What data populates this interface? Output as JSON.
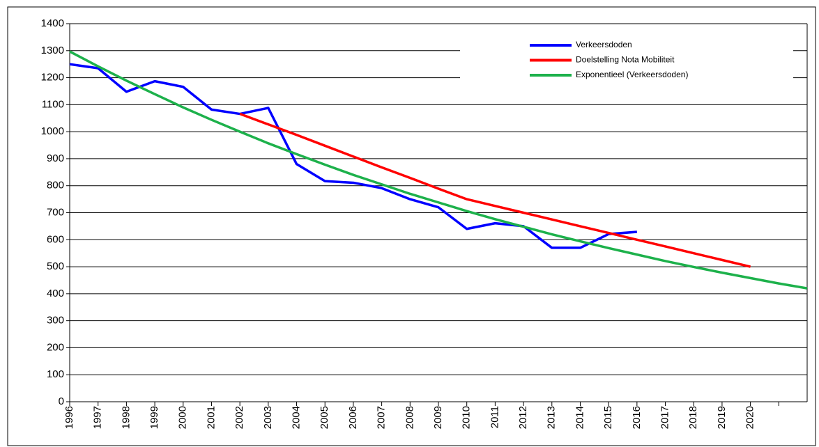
{
  "chart_data": {
    "type": "line",
    "categories": [
      "1996",
      "1997",
      "1998",
      "1999",
      "2000",
      "2001",
      "2002",
      "2003",
      "2004",
      "2005",
      "2006",
      "2007",
      "2008",
      "2009",
      "2010",
      "2011",
      "2012",
      "2013",
      "2014",
      "2015",
      "2016",
      "2017",
      "2018",
      "2019",
      "2020",
      null,
      null
    ],
    "series": [
      {
        "name": "Verkeersdoden",
        "color": "#0000ff",
        "values": [
          1250,
          1235,
          1148,
          1187,
          1166,
          1082,
          1066,
          1088,
          880,
          817,
          811,
          791,
          750,
          720,
          640,
          661,
          650,
          570,
          570,
          621,
          629,
          null,
          null,
          null,
          null,
          null,
          null
        ]
      },
      {
        "name": "Doelstelling Nota Mobiliteit",
        "color": "#ff0000",
        "values": [
          null,
          null,
          null,
          null,
          null,
          null,
          1066,
          1027,
          988,
          948,
          908,
          868,
          829,
          789,
          750,
          725,
          700,
          675,
          650,
          625,
          600,
          575,
          550,
          525,
          500,
          null,
          null
        ]
      },
      {
        "name": "Exponentieel (Verkeersdoden)",
        "color": "#1db14b",
        "values": [
          1297,
          1242,
          1189,
          1139,
          1090,
          1044,
          1000,
          957,
          917,
          878,
          840,
          805,
          770,
          738,
          706,
          676,
          648,
          620,
          594,
          569,
          545,
          521,
          499,
          478,
          458,
          438,
          420
        ]
      }
    ],
    "ylim": [
      0,
      1400
    ],
    "yticks": [
      0,
      100,
      200,
      300,
      400,
      500,
      600,
      700,
      800,
      900,
      1000,
      1100,
      1200,
      1300,
      1400
    ],
    "grid": true,
    "legend": "upper right"
  }
}
